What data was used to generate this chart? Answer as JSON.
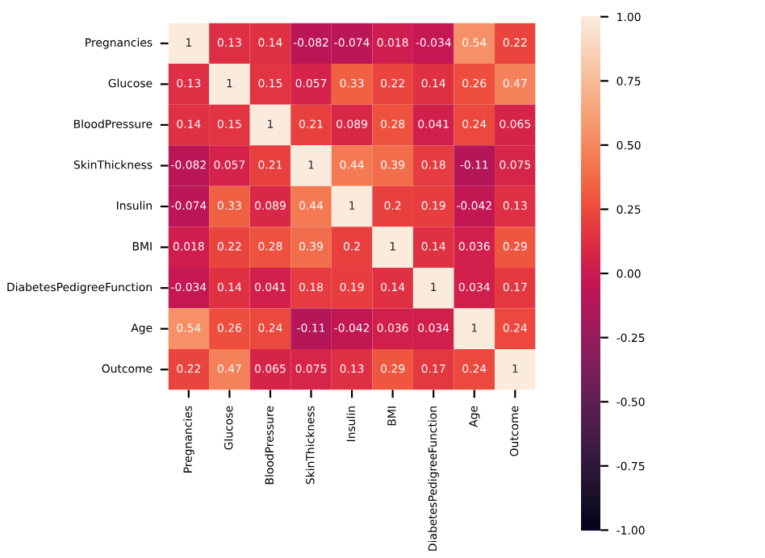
{
  "chart_data": {
    "type": "heatmap",
    "categories": [
      "Pregnancies",
      "Glucose",
      "BloodPressure",
      "SkinThickness",
      "Insulin",
      "BMI",
      "DiabetesPedigreeFunction",
      "Age",
      "Outcome"
    ],
    "y_categories": [
      "Pregnancies",
      "Glucose",
      "BloodPressure",
      "SkinThickness",
      "Insulin",
      "BMI",
      "DiabetesPedigreeFunction",
      "Age",
      "Outcome"
    ],
    "cells": [
      [
        1,
        0.13,
        0.14,
        -0.082,
        -0.074,
        0.018,
        -0.034,
        0.54,
        0.22
      ],
      [
        0.13,
        1,
        0.15,
        0.057,
        0.33,
        0.22,
        0.14,
        0.26,
        0.47
      ],
      [
        0.14,
        0.15,
        1,
        0.21,
        0.089,
        0.28,
        0.041,
        0.24,
        0.065
      ],
      [
        -0.082,
        0.057,
        0.21,
        1,
        0.44,
        0.39,
        0.18,
        -0.11,
        0.075
      ],
      [
        -0.074,
        0.33,
        0.089,
        0.44,
        1,
        0.2,
        0.19,
        -0.042,
        0.13
      ],
      [
        0.018,
        0.22,
        0.28,
        0.39,
        0.2,
        1,
        0.14,
        0.036,
        0.29
      ],
      [
        -0.034,
        0.14,
        0.041,
        0.18,
        0.19,
        0.14,
        1,
        0.034,
        0.17
      ],
      [
        0.54,
        0.26,
        0.24,
        -0.11,
        -0.042,
        0.036,
        0.034,
        1,
        0.24
      ],
      [
        0.22,
        0.47,
        0.065,
        0.075,
        0.13,
        0.29,
        0.17,
        0.24,
        1
      ]
    ],
    "data_labels": true,
    "clim": [
      -1,
      1
    ],
    "cticks": [
      {
        "value": -1,
        "label": "-1.00"
      },
      {
        "value": -0.75,
        "label": "-0.75"
      },
      {
        "value": -0.5,
        "label": "-0.50"
      },
      {
        "value": -0.25,
        "label": "-0.25"
      },
      {
        "value": 0,
        "label": "0.00"
      },
      {
        "value": 0.25,
        "label": "0.25"
      },
      {
        "value": 0.5,
        "label": "0.50"
      },
      {
        "value": 0.75,
        "label": "0.75"
      },
      {
        "value": 1,
        "label": "1.00"
      }
    ]
  }
}
